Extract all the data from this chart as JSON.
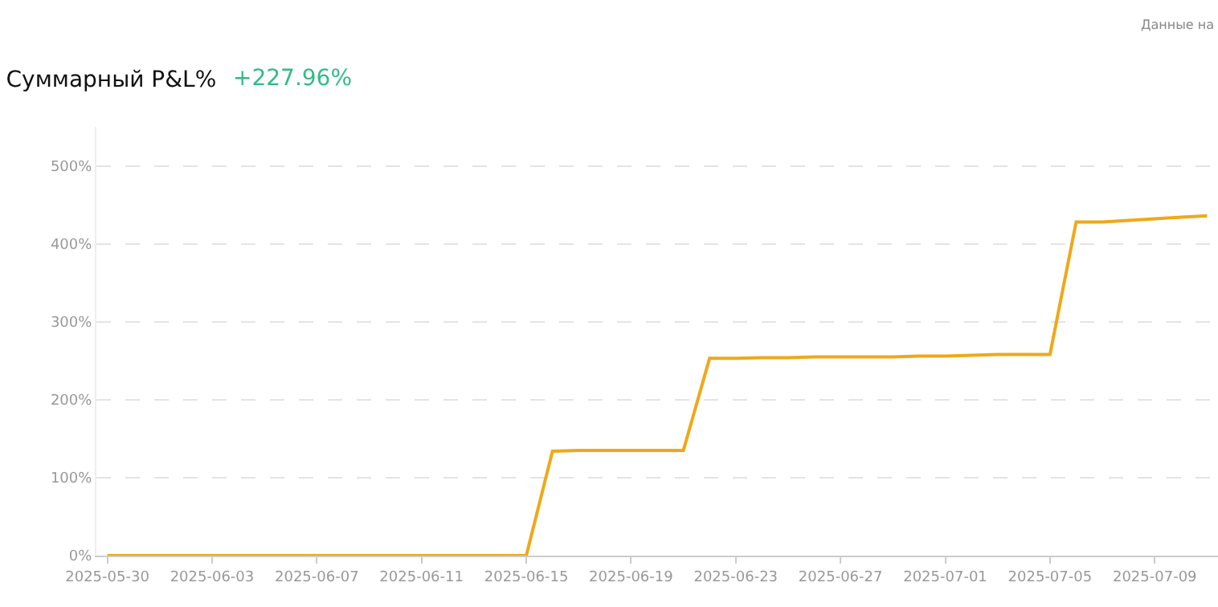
{
  "chart_data": {
    "type": "line",
    "title": "Суммарный P&L%",
    "subtitle": "+227.96%",
    "annotations": [
      "Данные на"
    ],
    "x": [
      "2025-05-30",
      "2025-05-31",
      "2025-06-01",
      "2025-06-02",
      "2025-06-03",
      "2025-06-04",
      "2025-06-05",
      "2025-06-06",
      "2025-06-07",
      "2025-06-08",
      "2025-06-09",
      "2025-06-10",
      "2025-06-11",
      "2025-06-12",
      "2025-06-13",
      "2025-06-14",
      "2025-06-15",
      "2025-06-16",
      "2025-06-17",
      "2025-06-18",
      "2025-06-19",
      "2025-06-20",
      "2025-06-21",
      "2025-06-22",
      "2025-06-23",
      "2025-06-24",
      "2025-06-25",
      "2025-06-26",
      "2025-06-27",
      "2025-06-28",
      "2025-06-29",
      "2025-06-30",
      "2025-07-01",
      "2025-07-02",
      "2025-07-03",
      "2025-07-04",
      "2025-07-05",
      "2025-07-06",
      "2025-07-07",
      "2025-07-08",
      "2025-07-09",
      "2025-07-10",
      "2025-07-11"
    ],
    "series": [
      {
        "color": "#f0a818",
        "values": [
          0,
          0,
          0,
          0,
          0,
          0,
          0,
          0,
          0,
          0,
          0,
          0,
          0,
          0,
          0,
          0,
          0,
          134,
          135,
          135,
          135,
          135,
          135,
          253,
          253,
          254,
          254,
          255,
          255,
          255,
          255,
          256,
          256,
          257,
          258,
          258,
          258,
          428,
          428,
          430,
          432,
          434,
          436
        ]
      }
    ],
    "xlim": [
      "2025-05-29T14:00",
      "2025-07-11T10:00"
    ],
    "xticks": [
      {
        "value": "2025-05-30",
        "label": "2025-05-30"
      },
      {
        "value": "2025-06-03",
        "label": "2025-06-03"
      },
      {
        "value": "2025-06-07",
        "label": "2025-06-07"
      },
      {
        "value": "2025-06-11",
        "label": "2025-06-11"
      },
      {
        "value": "2025-06-15",
        "label": "2025-06-15"
      },
      {
        "value": "2025-06-19",
        "label": "2025-06-19"
      },
      {
        "value": "2025-06-23",
        "label": "2025-06-23"
      },
      {
        "value": "2025-06-27",
        "label": "2025-06-27"
      },
      {
        "value": "2025-07-01",
        "label": "2025-07-01"
      },
      {
        "value": "2025-07-05",
        "label": "2025-07-05"
      },
      {
        "value": "2025-07-09",
        "label": "2025-07-09"
      }
    ],
    "ylim": [
      0,
      550
    ],
    "yticks": [
      {
        "value": 0,
        "label": "0%"
      },
      {
        "value": 100,
        "label": "100%"
      },
      {
        "value": 200,
        "label": "200%"
      },
      {
        "value": 300,
        "label": "300%"
      },
      {
        "value": 400,
        "label": "400%"
      },
      {
        "value": 500,
        "label": "500%"
      }
    ],
    "grid": "y",
    "marker": "none",
    "line_style": "solid"
  }
}
